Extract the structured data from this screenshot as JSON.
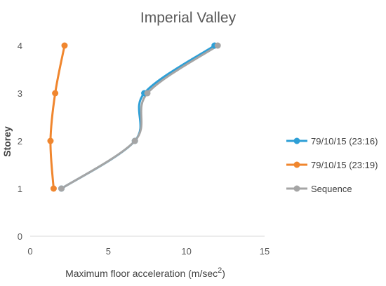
{
  "chart_data": {
    "type": "line",
    "title": "Imperial Valley",
    "xlabel": "Maximum floor acceleration (m/sec",
    "xlabel_superscript": "2",
    "xlabel_suffix": ")",
    "ylabel": "Storey",
    "xlim": [
      0,
      15
    ],
    "ylim": [
      0,
      4
    ],
    "x_ticks": [
      "0",
      "5",
      "10",
      "15"
    ],
    "y_ticks": [
      "0",
      "1",
      "2",
      "3",
      "4"
    ],
    "grid": false,
    "legend_position": "right",
    "series": [
      {
        "name": "79/10/15 (23:16)",
        "color": "#2E9FD6",
        "points": [
          {
            "x": 2.0,
            "y": 1
          },
          {
            "x": 6.7,
            "y": 2
          },
          {
            "x": 7.3,
            "y": 3
          },
          {
            "x": 11.8,
            "y": 4
          }
        ]
      },
      {
        "name": "79/10/15 (23:19)",
        "color": "#F0862E",
        "points": [
          {
            "x": 1.5,
            "y": 1
          },
          {
            "x": 1.3,
            "y": 2
          },
          {
            "x": 1.6,
            "y": 3
          },
          {
            "x": 2.2,
            "y": 4
          }
        ]
      },
      {
        "name": "Sequence",
        "color": "#A5A5A5",
        "points": [
          {
            "x": 2.0,
            "y": 1
          },
          {
            "x": 6.7,
            "y": 2
          },
          {
            "x": 7.5,
            "y": 3
          },
          {
            "x": 12.0,
            "y": 4
          }
        ]
      }
    ]
  }
}
